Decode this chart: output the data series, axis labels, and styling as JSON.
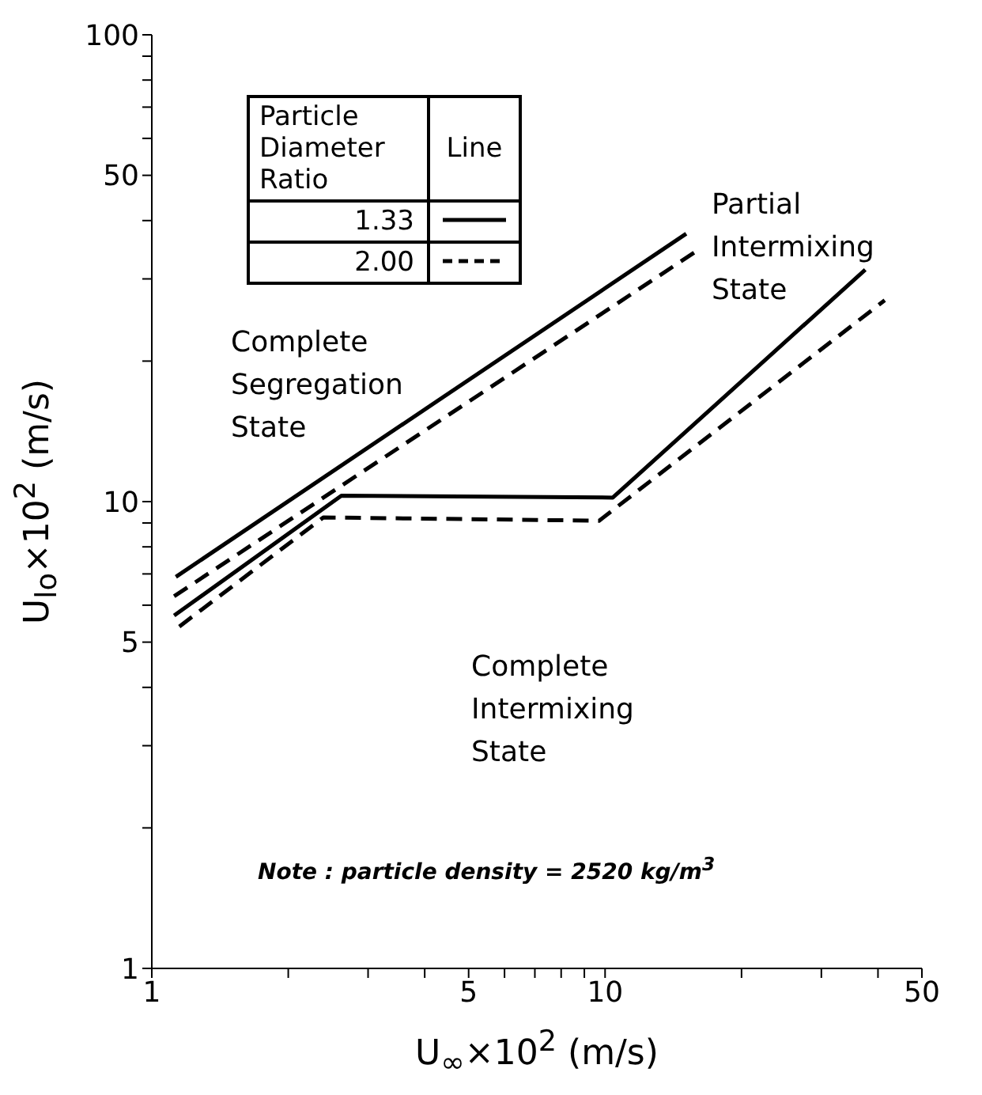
{
  "chart_data": {
    "type": "line",
    "xlabel": "U$_{∞}$×10$^{2}$ (m/s)",
    "ylabel": "U$_{lo}$×10$^{2}$ (m/s)",
    "legend_title": "Particle Diameter Ratio",
    "annotations": [
      "Line",
      "Complete Segregation State",
      "Partial Intermixing State",
      "Complete Intermixing State",
      "Note : particle density = 2520 kg/m$^{3}$"
    ],
    "series": [
      {
        "name": "1.33",
        "color": "#000000",
        "line_style": "solid",
        "x": [
          1.13,
          15.1
        ],
        "values": [
          6.9,
          37.5
        ]
      },
      {
        "color": "#000000",
        "line_style": "solid",
        "x": [
          1.12,
          2.62,
          10.4,
          37.5
        ],
        "values": [
          5.7,
          10.3,
          10.2,
          31.4
        ]
      },
      {
        "name": "2.00",
        "color": "#000000",
        "line_style": "dashed",
        "x": [
          1.12,
          15.9
        ],
        "values": [
          6.27,
          34.4
        ]
      },
      {
        "color": "#000000",
        "line_style": "dashed",
        "x": [
          1.15,
          2.39,
          9.7,
          41.4
        ],
        "values": [
          5.4,
          9.25,
          9.1,
          27.0
        ]
      }
    ],
    "log": "xy",
    "xlim": [
      1,
      50
    ],
    "ylim": [
      1,
      100
    ],
    "xticks": [
      1,
      {
        "value": 2,
        "label": null
      },
      {
        "value": 3,
        "label": null
      },
      {
        "value": 4,
        "label": null
      },
      5,
      {
        "value": 6,
        "label": null
      },
      {
        "value": 7,
        "label": null
      },
      {
        "value": 8,
        "label": null
      },
      {
        "value": 9,
        "label": null
      },
      10,
      {
        "value": 20,
        "label": null
      },
      {
        "value": 30,
        "label": null
      },
      {
        "value": 40,
        "label": null
      },
      50
    ],
    "yticks": [
      1,
      {
        "value": 2,
        "label": null
      },
      {
        "value": 3,
        "label": null
      },
      {
        "value": 4,
        "label": null
      },
      5,
      {
        "value": 6,
        "label": null
      },
      {
        "value": 7,
        "label": null
      },
      {
        "value": 8,
        "label": null
      },
      {
        "value": 9,
        "label": null
      },
      10,
      {
        "value": 20,
        "label": null
      },
      {
        "value": 30,
        "label": null
      },
      {
        "value": 40,
        "label": null
      },
      50,
      {
        "value": 60,
        "label": null
      },
      {
        "value": 70,
        "label": null
      },
      {
        "value": 80,
        "label": null
      },
      {
        "value": 90,
        "label": null
      },
      100
    ],
    "legend": "top left",
    "grid": false,
    "marker": "none"
  }
}
